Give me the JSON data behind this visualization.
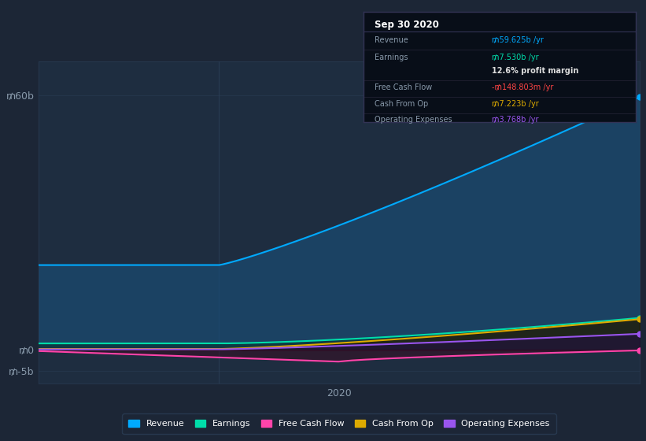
{
  "bg_color": "#1c2636",
  "plot_bg_color": "#1e2d40",
  "grid_color": "#2a3d55",
  "ylabel_color": "#8899aa",
  "yticks": [
    -5,
    0,
    60
  ],
  "ytick_labels": [
    "₥-5b",
    "₥0",
    "₥60b"
  ],
  "xlabel": "2020",
  "xlim": [
    0,
    100
  ],
  "ylim": [
    -8,
    68
  ],
  "revenue_color": "#00aaff",
  "revenue_fill": "#1a4a70",
  "revenue_start": 20,
  "revenue_end": 59.625,
  "earnings_color": "#00ddaa",
  "earnings_fill": "#0a3030",
  "earnings_start": 1.5,
  "earnings_end": 7.53,
  "fcf_color": "#ff44aa",
  "fcf_fill": "#3a0a20",
  "fcf_start": -0.3,
  "fcf_dip": -2.8,
  "fcf_end": -0.15,
  "cashfromop_color": "#ddaa00",
  "cashfromop_fill": "#2a1a00",
  "cashfromop_start": 0.2,
  "cashfromop_end": 7.223,
  "opex_color": "#9955ee",
  "opex_fill": "#221040",
  "opex_start": 0.1,
  "opex_end": 3.768,
  "legend_items": [
    {
      "label": "Revenue",
      "color": "#00aaff"
    },
    {
      "label": "Earnings",
      "color": "#00ddaa"
    },
    {
      "label": "Free Cash Flow",
      "color": "#ff44aa"
    },
    {
      "label": "Cash From Op",
      "color": "#ddaa00"
    },
    {
      "label": "Operating Expenses",
      "color": "#9955ee"
    }
  ],
  "info_box_title": "Sep 30 2020",
  "info_box_bg": "#080e18",
  "info_box_border": "#333355",
  "info_rows": [
    {
      "label": "Revenue",
      "value": "₥59.625b /yr",
      "value_color": "#00aaff",
      "separator": true
    },
    {
      "label": "Earnings",
      "value": "₥7.530b /yr",
      "value_color": "#00ddaa",
      "separator": false
    },
    {
      "label": "",
      "value": "12.6% profit margin",
      "value_color": "#dddddd",
      "separator": true
    },
    {
      "label": "Free Cash Flow",
      "value": "-₥148.803m /yr",
      "value_color": "#ff4444",
      "separator": true
    },
    {
      "label": "Cash From Op",
      "value": "₥7.223b /yr",
      "value_color": "#ddaa00",
      "separator": true
    },
    {
      "label": "Operating Expenses",
      "value": "₥3.768b /yr",
      "value_color": "#9955ee",
      "separator": false
    }
  ],
  "divider_x": 30,
  "line_width": 1.5
}
